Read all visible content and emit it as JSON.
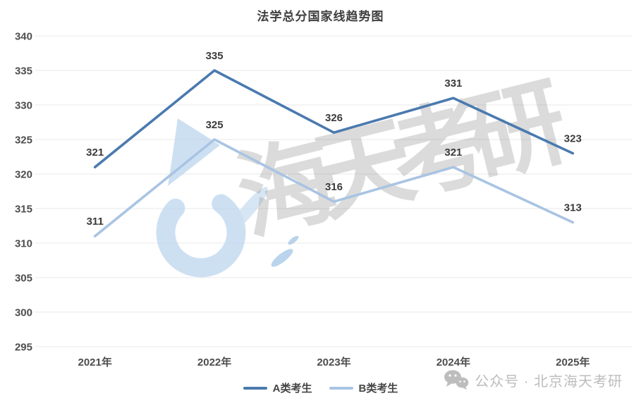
{
  "chart_data": {
    "type": "line",
    "title": "法学总分国家线趋势图",
    "categories": [
      "2021年",
      "2022年",
      "2023年",
      "2024年",
      "2025年"
    ],
    "series": [
      {
        "name": "A类考生",
        "color": "#4a7aaf",
        "values": [
          321,
          335,
          326,
          331,
          323
        ]
      },
      {
        "name": "B类考生",
        "color": "#a9c4e3",
        "values": [
          311,
          325,
          316,
          321,
          313
        ]
      }
    ],
    "ylim": [
      295,
      340
    ],
    "ytick_step": 5,
    "grid": true,
    "legend_position": "bottom",
    "value_labels": true
  },
  "watermark": {
    "logo": "haitian-logo",
    "text": "海天考研"
  },
  "footer": {
    "icon": "wechat-icon",
    "text": "公众号 · 北京海天考研"
  },
  "colors": {
    "grid": "#e8e8e8",
    "axis_text": "#4d4d4d",
    "value_label": "#3b3b3b",
    "footer_text": "#bdbdbd",
    "watermark_blue": "#bdd6ee",
    "watermark_blue_dark": "#8ab6de",
    "watermark_gray": "#909090"
  }
}
